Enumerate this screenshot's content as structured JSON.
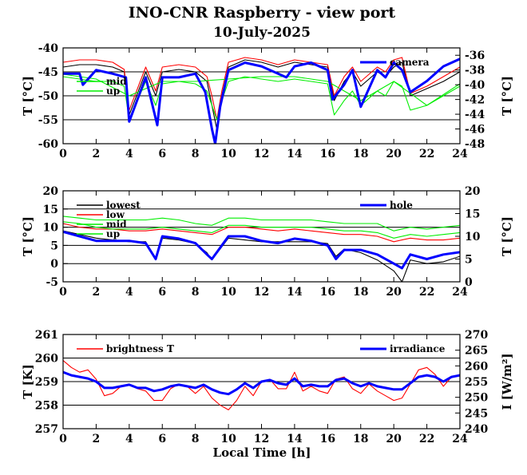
{
  "title": "INO-CNR Raspberry - view port",
  "subtitle": "10-July-2025",
  "xlabel": "Local Time [h]",
  "chart_data": [
    {
      "type": "line",
      "panel": "camera-temperatures",
      "xlim": [
        0,
        24
      ],
      "xticks": [
        "0",
        "2",
        "4",
        "6",
        "8",
        "10",
        "12",
        "14",
        "16",
        "18",
        "20",
        "22",
        "24"
      ],
      "ylabel": "T [°C]",
      "ylim": [
        -60,
        -40
      ],
      "yticks": [
        "-40",
        "-45",
        "-50",
        "-55",
        "-60"
      ],
      "y2label": "T [°C]",
      "y2lim": [
        -48,
        -35
      ],
      "y2ticks": [
        "-36",
        "-38",
        "-40",
        "-42",
        "-44",
        "-46",
        "-48"
      ],
      "grid": true,
      "series": [
        {
          "name": "",
          "axis": "left",
          "color": "#000000",
          "x": [
            0,
            1,
            2,
            3,
            3.7,
            4,
            5,
            5.6,
            6,
            7,
            8,
            8.7,
            9,
            9.3,
            9.6,
            10,
            11,
            12,
            13,
            14,
            15,
            16,
            16.4,
            17,
            17.5,
            18,
            19,
            19.5,
            20,
            20.5,
            21,
            22,
            23,
            24
          ],
          "y": [
            -44,
            -43.5,
            -43.5,
            -44,
            -45,
            -54,
            -45,
            -50,
            -45,
            -44.5,
            -45,
            -47,
            -52,
            -57,
            -50,
            -44,
            -42.5,
            -43,
            -44,
            -43,
            -43.5,
            -44,
            -51,
            -47,
            -45,
            -48,
            -45,
            -46,
            -44,
            -43,
            -50,
            -48.5,
            -47,
            -45
          ]
        },
        {
          "name": "",
          "axis": "left",
          "color": "#ff0000",
          "x": [
            0,
            1,
            2,
            3,
            3.7,
            4,
            5,
            5.6,
            6,
            7,
            8,
            8.7,
            9,
            9.3,
            9.6,
            10,
            11,
            12,
            13,
            14,
            15,
            16,
            16.4,
            17,
            17.5,
            18,
            19,
            19.5,
            20,
            20.5,
            21,
            22,
            23,
            24
          ],
          "y": [
            -43,
            -42.5,
            -42.5,
            -43,
            -44.5,
            -53,
            -44,
            -49,
            -44,
            -43.5,
            -44,
            -46,
            -50,
            -55,
            -49,
            -43,
            -42,
            -42.5,
            -43.5,
            -42.5,
            -43,
            -43.5,
            -50,
            -46,
            -44,
            -47,
            -44,
            -45,
            -42.5,
            -42,
            -49.5,
            -48,
            -46,
            -44
          ]
        },
        {
          "name": "mid",
          "axis": "left",
          "color": "#00ee00",
          "x": [
            0,
            1,
            2,
            3,
            3.7,
            4,
            5,
            5.6,
            6,
            7,
            8,
            8.7,
            9,
            9.3,
            9.6,
            10,
            11,
            12,
            13,
            14,
            15,
            16,
            16.4,
            17,
            17.5,
            18,
            19,
            19.5,
            20,
            20.5,
            21,
            22,
            23,
            24
          ],
          "y": [
            -46,
            -46.5,
            -47,
            -47,
            -48,
            -55,
            -47,
            -52,
            -47.5,
            -47,
            -47.5,
            -49,
            -52,
            -55,
            -51,
            -47,
            -46,
            -46.5,
            -47,
            -46.5,
            -47,
            -47.5,
            -54,
            -51,
            -49,
            -52,
            -49,
            -50,
            -47,
            -48,
            -53,
            -52,
            -50,
            -48
          ]
        },
        {
          "name": "up",
          "axis": "left",
          "color": "#00ee00",
          "x": [
            0,
            2,
            4,
            6,
            8,
            10,
            12,
            14,
            16,
            18,
            20,
            22,
            24
          ],
          "y": [
            -45.5,
            -46.5,
            -50,
            -47,
            -47,
            -46.5,
            -46,
            -46,
            -47,
            -51,
            -47,
            -52,
            -47.5
          ]
        },
        {
          "name": "camera",
          "axis": "right",
          "color": "#0000ff",
          "x": [
            0,
            1,
            1.2,
            2,
            3,
            3.8,
            4,
            5,
            5.7,
            6,
            7,
            8,
            8.6,
            9,
            9.2,
            9.5,
            10,
            11,
            12,
            13,
            13.5,
            14,
            15,
            16,
            16.3,
            17,
            17.5,
            18,
            19,
            19.5,
            20,
            20.5,
            21,
            22,
            23,
            24
          ],
          "y": [
            -38.5,
            -38.5,
            -40,
            -38,
            -38.5,
            -39,
            -45,
            -39,
            -45.5,
            -39,
            -39,
            -38.5,
            -41,
            -46,
            -48,
            -43,
            -38,
            -37,
            -37.5,
            -38.5,
            -39,
            -37.5,
            -37,
            -38,
            -42,
            -40,
            -38,
            -43,
            -38,
            -39,
            -37,
            -38,
            -41,
            -39.5,
            -37.5,
            -36.5
          ]
        }
      ]
    },
    {
      "type": "line",
      "panel": "enclosure-temperatures",
      "xlim": [
        0,
        24
      ],
      "xticks": [
        "0",
        "2",
        "4",
        "6",
        "8",
        "10",
        "12",
        "14",
        "16",
        "18",
        "20",
        "22",
        "24"
      ],
      "ylabel": "T [°C]",
      "ylim": [
        -5,
        20
      ],
      "yticks": [
        "20",
        "15",
        "10",
        "5",
        "0",
        "-5"
      ],
      "y2label": "T [°C]",
      "y2lim": [
        0,
        20
      ],
      "y2ticks": [
        "20",
        "15",
        "10",
        "5",
        "0"
      ],
      "grid": true,
      "series": [
        {
          "name": "lowest",
          "axis": "left",
          "color": "#000000",
          "x": [
            0,
            1,
            2,
            3,
            4,
            5,
            5.6,
            6,
            7,
            8,
            8.7,
            9,
            10,
            11,
            12,
            13,
            14,
            15,
            16,
            16.5,
            17,
            18,
            19,
            20,
            20.5,
            21,
            22,
            23,
            24
          ],
          "y": [
            9,
            8,
            7,
            6.5,
            6,
            6,
            1,
            7,
            6.5,
            5.5,
            3,
            1,
            7,
            6.5,
            6,
            6,
            6,
            6,
            5.5,
            2,
            4,
            3,
            1,
            -2,
            -5,
            1,
            0,
            0.5,
            2
          ]
        },
        {
          "name": "low",
          "axis": "left",
          "color": "#ff0000",
          "x": [
            0,
            1,
            2,
            3,
            4,
            5,
            6,
            7,
            8,
            9,
            10,
            11,
            12,
            13,
            14,
            15,
            16,
            17,
            18,
            19,
            20,
            21,
            22,
            23,
            24
          ],
          "y": [
            11,
            10,
            9.5,
            9.5,
            9,
            9,
            9.5,
            9,
            8.5,
            8,
            10,
            10,
            9.5,
            9,
            9.5,
            9,
            8.5,
            8,
            8,
            7.5,
            6,
            7,
            6.5,
            6.5,
            7
          ]
        },
        {
          "name": "mid",
          "axis": "left",
          "color": "#00ee00",
          "x": [
            0,
            1,
            2,
            3,
            4,
            5,
            6,
            7,
            8,
            9,
            10,
            11,
            12,
            13,
            14,
            15,
            16,
            17,
            18,
            19,
            20,
            21,
            22,
            23,
            24
          ],
          "y": [
            11.5,
            11,
            10,
            9.5,
            9.5,
            9.5,
            10,
            9.5,
            9,
            8.5,
            10.5,
            10.5,
            10,
            10,
            10,
            10,
            9.5,
            9,
            9,
            8.5,
            7,
            8,
            7.5,
            8,
            8.5
          ]
        },
        {
          "name": "up",
          "axis": "left",
          "color": "#00ee00",
          "x": [
            0,
            1,
            2,
            3,
            4,
            5,
            6,
            7,
            8,
            9,
            10,
            11,
            12,
            13,
            14,
            15,
            16,
            17,
            18,
            19,
            20,
            21,
            22,
            23,
            24
          ],
          "y": [
            13,
            12.5,
            12,
            12,
            12,
            12,
            12.5,
            12,
            11,
            10.5,
            12.5,
            12.5,
            12,
            12,
            12,
            12,
            11.5,
            11,
            11,
            11,
            9,
            10,
            9.5,
            10,
            10.5
          ]
        },
        {
          "name": "hole",
          "axis": "right",
          "color": "#0000ff",
          "x": [
            0,
            1,
            2,
            3,
            4,
            5,
            5.6,
            6,
            7,
            8,
            8.7,
            9,
            10,
            11,
            12,
            13,
            14,
            15,
            16,
            16.5,
            17,
            18,
            19,
            20,
            20.5,
            21,
            22,
            23,
            24
          ],
          "y": [
            11,
            10,
            9,
            9,
            9,
            8.5,
            5,
            10,
            9.5,
            8.5,
            6,
            5,
            10,
            10,
            9,
            8.5,
            9.5,
            9,
            8,
            5,
            7,
            7,
            6,
            4,
            3,
            6,
            5,
            6,
            6.5
          ]
        }
      ]
    },
    {
      "type": "line",
      "panel": "brightness-irradiance",
      "xlim": [
        0,
        24
      ],
      "xticks": [
        "0",
        "2",
        "4",
        "6",
        "8",
        "10",
        "12",
        "14",
        "16",
        "18",
        "20",
        "22",
        "24"
      ],
      "ylabel": "T [K]",
      "ylim": [
        257,
        261
      ],
      "yticks": [
        "261",
        "260",
        "259",
        "258",
        "257"
      ],
      "y2label": "I [W/m²]",
      "y2lim": [
        240,
        270
      ],
      "y2ticks": [
        "270",
        "265",
        "260",
        "255",
        "250",
        "245",
        "240"
      ],
      "grid": true,
      "series": [
        {
          "name": "brightness T",
          "axis": "left",
          "color": "#ff0000",
          "x": [
            0,
            0.5,
            1,
            1.5,
            2,
            2.5,
            3,
            3.5,
            4,
            4.5,
            5,
            5.5,
            6,
            6.5,
            7,
            7.5,
            8,
            8.5,
            9,
            9.5,
            10,
            10.5,
            11,
            11.5,
            12,
            12.5,
            13,
            13.5,
            14,
            14.5,
            15,
            15.5,
            16,
            16.5,
            17,
            17.5,
            18,
            18.5,
            19,
            19.5,
            20,
            20.5,
            21,
            21.5,
            22,
            22.5,
            23,
            23.5,
            24
          ],
          "y": [
            259.9,
            259.6,
            259.4,
            259.5,
            259.1,
            258.4,
            258.5,
            258.8,
            258.9,
            258.7,
            258.6,
            258.2,
            258.2,
            258.7,
            258.9,
            258.8,
            258.5,
            258.8,
            258.3,
            258,
            257.8,
            258.2,
            258.8,
            258.4,
            259,
            259.1,
            258.7,
            258.7,
            259.4,
            258.6,
            258.8,
            258.6,
            258.5,
            259.1,
            259.2,
            258.7,
            258.5,
            258.9,
            258.6,
            258.4,
            258.2,
            258.3,
            258.9,
            259.5,
            259.6,
            259.3,
            258.8,
            259.2,
            259.3
          ]
        },
        {
          "name": "irradiance",
          "axis": "right",
          "color": "#0000ff",
          "x": [
            0,
            0.5,
            1,
            1.5,
            2,
            2.5,
            3,
            3.5,
            4,
            4.5,
            5,
            5.5,
            6,
            6.5,
            7,
            7.5,
            8,
            8.5,
            9,
            9.5,
            10,
            10.5,
            11,
            11.5,
            12,
            12.5,
            13,
            13.5,
            14,
            14.5,
            15,
            15.5,
            16,
            16.5,
            17,
            17.5,
            18,
            18.5,
            19,
            19.5,
            20,
            20.5,
            21,
            21.5,
            22,
            22.5,
            23,
            23.5,
            24
          ],
          "y": [
            258,
            257,
            256.5,
            256,
            255,
            253,
            253,
            253.5,
            254,
            253,
            253,
            252,
            252.5,
            253.5,
            254,
            253.5,
            253,
            254,
            252.5,
            251.5,
            251,
            252.5,
            254.5,
            253,
            255,
            255.5,
            254.5,
            254,
            256,
            253.5,
            254,
            253.5,
            253.5,
            255.5,
            256,
            254.5,
            253.5,
            254.5,
            253.5,
            253,
            252.5,
            252.5,
            254.5,
            256.5,
            257,
            256.5,
            255,
            256.5,
            257
          ]
        }
      ]
    }
  ]
}
